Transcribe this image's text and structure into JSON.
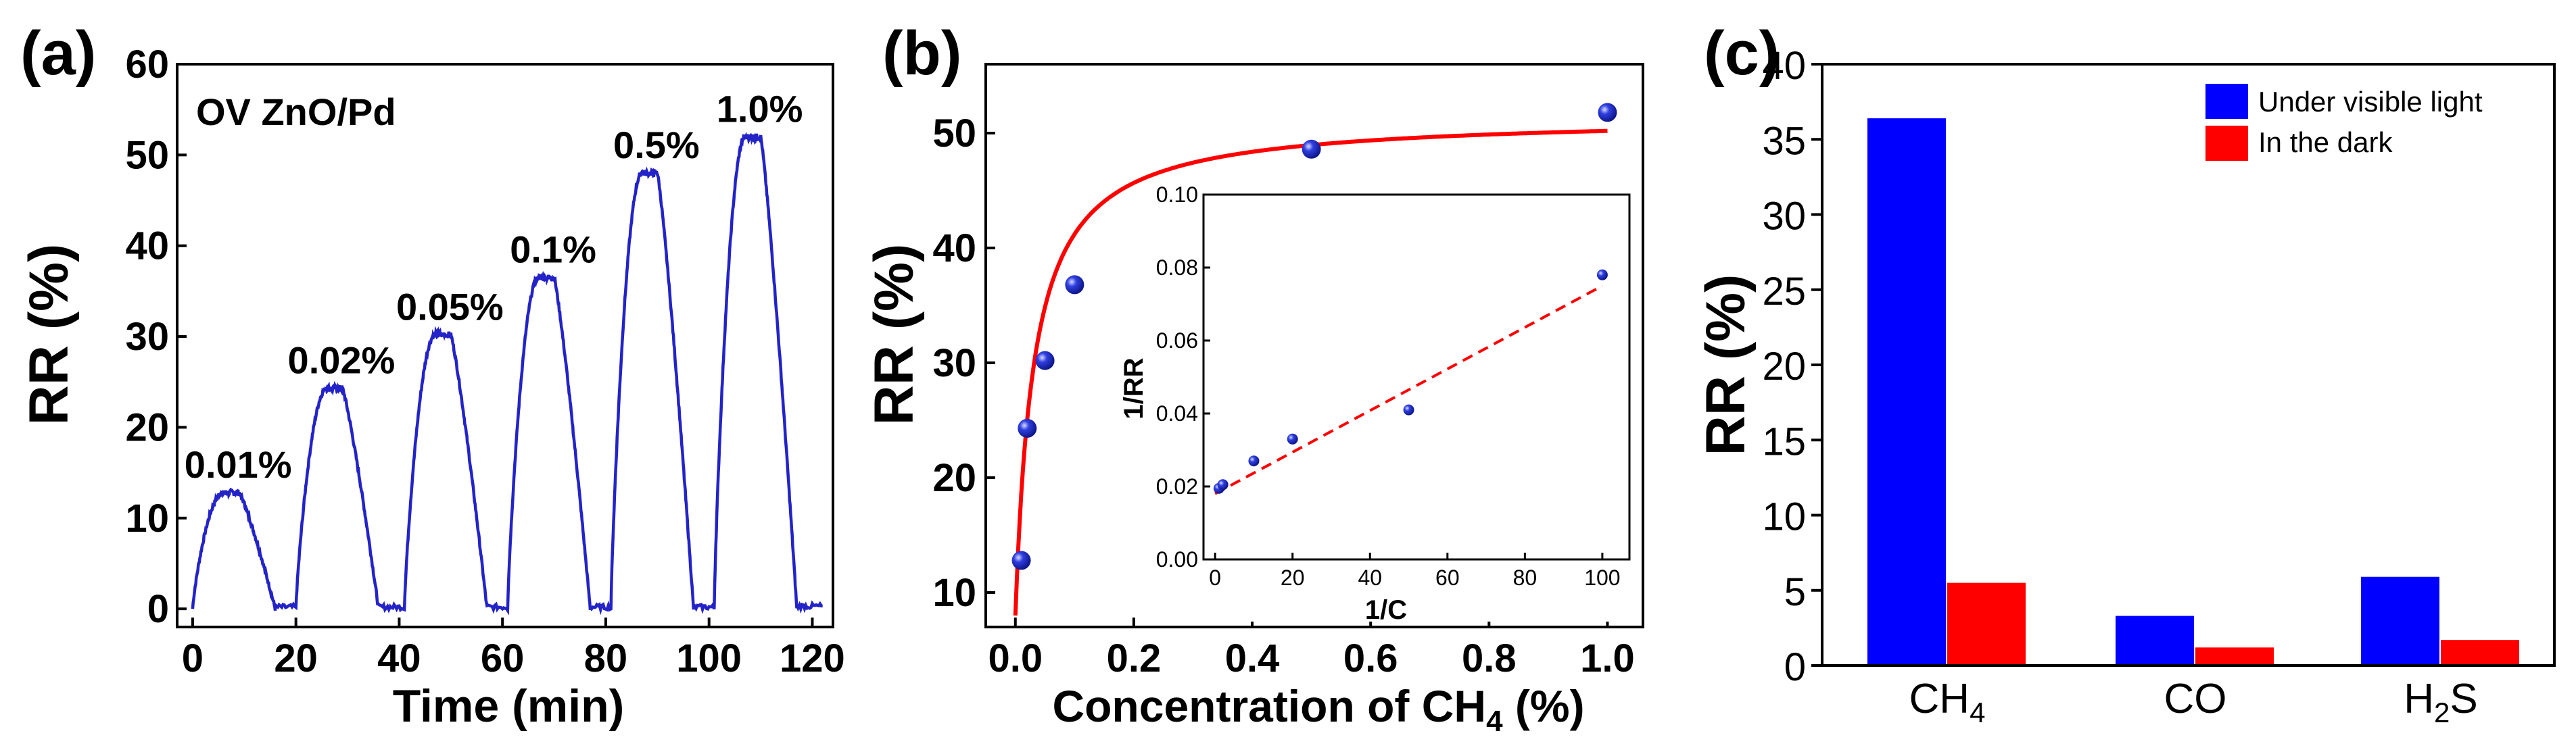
{
  "colors": {
    "blue_line": "#2323c8",
    "red_fit": "#ff0000",
    "bar_blue": "#0000ff",
    "bar_red": "#ff0000",
    "axis": "#000000",
    "marker_fill": "#2f3fe0"
  },
  "chart_data": [
    {
      "panel": "(a)",
      "type": "line",
      "title": "OV ZnO/Pd",
      "xlabel": "Time (min)",
      "ylabel": "RR (%)",
      "xlim": [
        -3,
        124
      ],
      "ylim": [
        -2,
        60
      ],
      "xticks": [
        0,
        20,
        40,
        60,
        80,
        100,
        120
      ],
      "yticks": [
        0,
        10,
        20,
        30,
        40,
        50,
        60
      ],
      "series": [
        {
          "name": "response",
          "pulses": [
            {
              "start": 0,
              "peak_start": 6,
              "peak_end": 9,
              "end": 16,
              "value": 12.8,
              "label": "0.01%"
            },
            {
              "start": 20,
              "peak_start": 26,
              "peak_end": 29,
              "end": 36,
              "value": 24.3,
              "label": "0.02%"
            },
            {
              "start": 41,
              "peak_start": 47,
              "peak_end": 50,
              "end": 57,
              "value": 30.2,
              "label": "0.05%"
            },
            {
              "start": 61,
              "peak_start": 67,
              "peak_end": 70,
              "end": 77,
              "value": 36.5,
              "label": "0.1%"
            },
            {
              "start": 81,
              "peak_start": 87,
              "peak_end": 90,
              "end": 97,
              "value": 48.0,
              "label": "0.5%"
            },
            {
              "start": 101,
              "peak_start": 107,
              "peak_end": 110,
              "end": 117,
              "value": 52.0,
              "label": "1.0%"
            }
          ],
          "end_x": 122
        }
      ]
    },
    {
      "panel": "(b)",
      "type": "scatter",
      "xlabel": "Concentration of CH",
      "xlabel_sub": "4",
      "xlabel_suffix": " (%)",
      "ylabel": "RR (%)",
      "xlim": [
        -0.05,
        1.06
      ],
      "ylim": [
        7,
        56
      ],
      "xticks": [
        0.0,
        0.2,
        0.4,
        0.6,
        0.8,
        1.0
      ],
      "xtick_labels": [
        "0.0",
        "0.2",
        "0.4",
        "0.6",
        "0.8",
        "1.0"
      ],
      "yticks": [
        10,
        20,
        30,
        40,
        50
      ],
      "points": [
        {
          "x": 0.01,
          "y": 12.8
        },
        {
          "x": 0.02,
          "y": 24.3
        },
        {
          "x": 0.05,
          "y": 30.2
        },
        {
          "x": 0.1,
          "y": 36.8
        },
        {
          "x": 0.5,
          "y": 48.6
        },
        {
          "x": 1.0,
          "y": 51.8
        }
      ],
      "fit": {
        "type": "langmuir",
        "rmax": 51.5,
        "k": 0.031,
        "x_from": 0.0,
        "x_to": 1.0
      },
      "inset": {
        "type": "scatter",
        "xlabel": "1/C",
        "ylabel": "1/RR",
        "xlim": [
          -3,
          107
        ],
        "ylim": [
          0.0,
          0.1
        ],
        "xticks": [
          0,
          20,
          40,
          60,
          80,
          100
        ],
        "xtick_labels": [
          "0",
          "20",
          "40",
          "60",
          "80",
          "100"
        ],
        "yticks": [
          0.0,
          0.02,
          0.04,
          0.06,
          0.08,
          0.1
        ],
        "ytick_labels": [
          "0.00",
          "0.02",
          "0.04",
          "0.06",
          "0.08",
          "0.10"
        ],
        "points": [
          {
            "x": 1,
            "y": 0.0195
          },
          {
            "x": 2,
            "y": 0.0205
          },
          {
            "x": 10,
            "y": 0.027
          },
          {
            "x": 20,
            "y": 0.033
          },
          {
            "x": 50,
            "y": 0.041
          },
          {
            "x": 100,
            "y": 0.078
          }
        ],
        "fit_line": {
          "x_from": 0,
          "x_to": 100,
          "y_from": 0.018,
          "y_to": 0.075
        }
      }
    },
    {
      "panel": "(c)",
      "type": "bar",
      "ylabel": "RR (%)",
      "categories": [
        "CH4",
        "CO",
        "H2S"
      ],
      "category_labels": [
        {
          "main": "CH",
          "sub": "4",
          "after": ""
        },
        {
          "main": "CO",
          "sub": "",
          "after": ""
        },
        {
          "main": "H",
          "sub": "2",
          "after": "S"
        }
      ],
      "ylim": [
        0,
        40
      ],
      "yticks": [
        0,
        5,
        10,
        15,
        20,
        25,
        30,
        35,
        40
      ],
      "series": [
        {
          "name": "Under visible light",
          "values": [
            36.4,
            3.3,
            5.9
          ]
        },
        {
          "name": "In the dark",
          "values": [
            5.5,
            1.2,
            1.7
          ]
        }
      ],
      "legend": "top-right"
    }
  ]
}
